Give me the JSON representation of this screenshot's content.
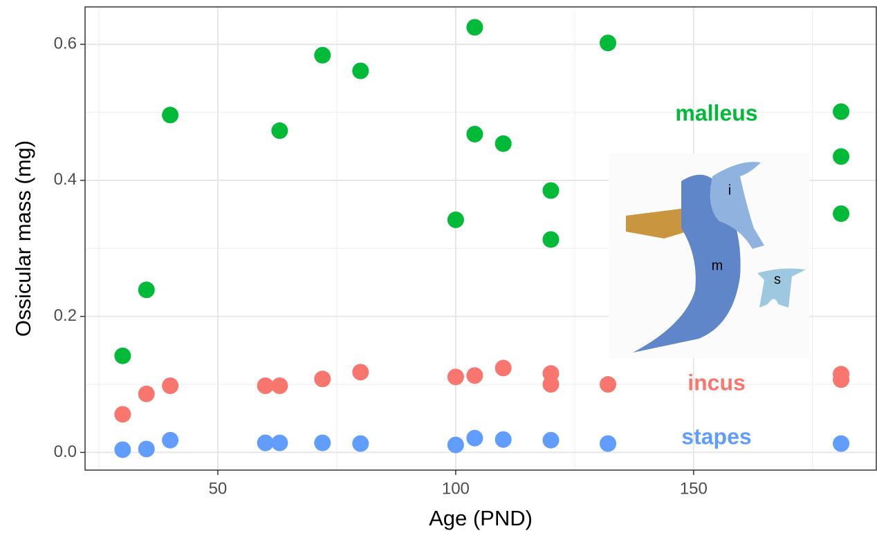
{
  "chart_data": {
    "type": "scatter",
    "x_label": "Age (PND)",
    "y_label": "Ossicular mass (mg)",
    "xlim": [
      22.1,
      188.4
    ],
    "ylim": [
      -0.026,
      0.655
    ],
    "xticks": [
      50,
      100,
      150
    ],
    "yticks": [
      {
        "value": 0,
        "label": "0.0"
      },
      0.2,
      0.4,
      0.6
    ],
    "minor_xticks": [
      25,
      75,
      125,
      175
    ],
    "minor_yticks": [
      0.1,
      0.3,
      0.5
    ],
    "grid": true,
    "image_labels": [
      "i",
      "m",
      "s"
    ],
    "series": [
      {
        "name": "malleus",
        "color": "#00BA38",
        "x": [
          30,
          35,
          40,
          63,
          72,
          80,
          100,
          104,
          104,
          110,
          120,
          120,
          132,
          181,
          181,
          181
        ],
        "values": [
          0.142,
          0.239,
          0.496,
          0.473,
          0.584,
          0.561,
          0.342,
          0.625,
          0.468,
          0.454,
          0.385,
          0.313,
          0.602,
          0.501,
          0.435,
          0.351
        ]
      },
      {
        "name": "incus",
        "color": "#F8766D",
        "x": [
          30,
          35,
          40,
          60,
          63,
          72,
          80,
          100,
          104,
          110,
          120,
          120,
          132,
          181,
          181
        ],
        "values": [
          0.056,
          0.086,
          0.098,
          0.098,
          0.098,
          0.108,
          0.118,
          0.111,
          0.113,
          0.124,
          0.116,
          0.1,
          0.1,
          0.115,
          0.107
        ]
      },
      {
        "name": "stapes",
        "color": "#619CFF",
        "x": [
          30,
          35,
          40,
          60,
          63,
          72,
          80,
          100,
          104,
          110,
          120,
          132,
          181
        ],
        "values": [
          0.004,
          0.005,
          0.018,
          0.014,
          0.014,
          0.014,
          0.013,
          0.011,
          0.021,
          0.019,
          0.018,
          0.013,
          0.013
        ]
      }
    ]
  }
}
